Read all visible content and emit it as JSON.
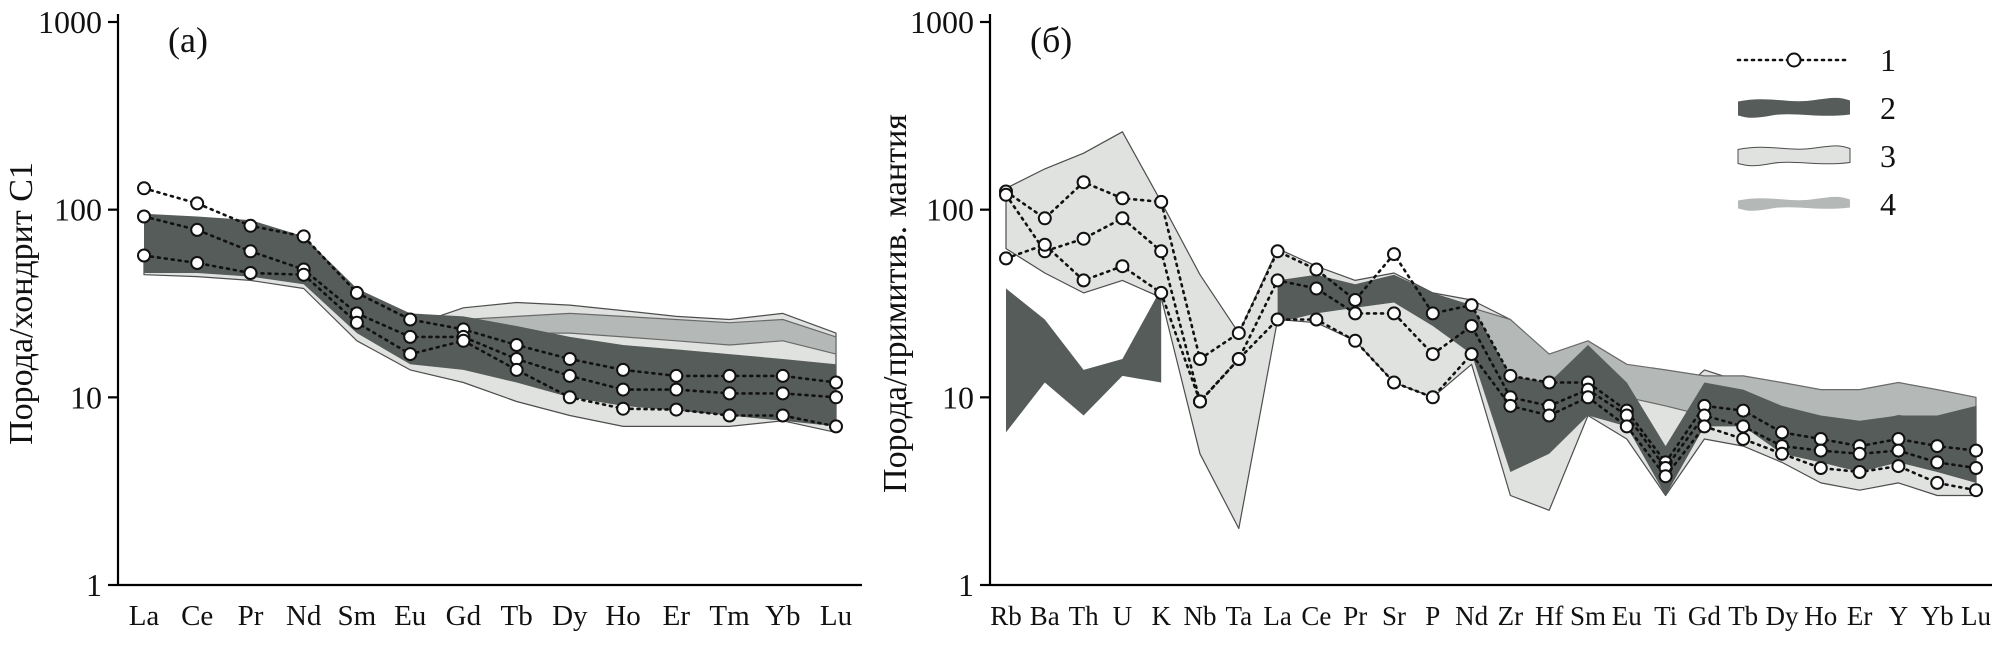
{
  "figure": {
    "panel_a_label": "(а)",
    "panel_b_label": "(б)"
  },
  "legend": {
    "items": [
      {
        "label": "1",
        "type": "line"
      },
      {
        "label": "2",
        "type": "band",
        "color": "#565c5a",
        "height": 15
      },
      {
        "label": "3",
        "type": "band",
        "color": "#e0e2e0",
        "height": 15
      },
      {
        "label": "4",
        "type": "band",
        "color": "#b4b9b7",
        "height": 9
      }
    ]
  },
  "colors": {
    "line": "#111111",
    "marker_fill": "#ffffff",
    "band_dark": "#565c5a",
    "band_light": "#e0e2e0",
    "band_medium": "#b4b9b7"
  },
  "chart_data": [
    {
      "type": "line",
      "panel_label": "(а)",
      "ylabel": "Порода/хондрит С1",
      "yscale": "log",
      "ylim": [
        1,
        1000
      ],
      "yticks": [
        1000,
        100,
        10,
        1
      ],
      "grid": false,
      "categories": [
        "La",
        "Ce",
        "Pr",
        "Nd",
        "Sm",
        "Eu",
        "Gd",
        "Tb",
        "Dy",
        "Ho",
        "Er",
        "Tm",
        "Yb",
        "Lu"
      ],
      "bands": [
        {
          "name": "3",
          "color": "#e0e2e0",
          "stroke": "#4d4d4d",
          "upper": [
            58,
            52,
            50,
            52,
            32,
            24,
            30,
            32,
            31,
            29,
            27,
            26,
            28,
            22
          ],
          "lower": [
            45,
            44,
            42,
            38,
            20,
            14,
            12,
            9.5,
            8,
            7,
            7,
            7,
            7.5,
            6.5
          ]
        },
        {
          "name": "4",
          "color": "#b4b9b7",
          "stroke": "#6a6a6a",
          "upper": [
            null,
            null,
            null,
            null,
            null,
            null,
            26,
            27,
            28,
            27,
            26,
            25,
            26,
            21
          ],
          "lower": [
            null,
            null,
            null,
            null,
            null,
            null,
            21,
            22,
            22,
            21,
            20,
            19,
            20,
            17
          ]
        },
        {
          "name": "2",
          "color": "#565c5a",
          "stroke": "none",
          "upper": [
            95,
            92,
            88,
            72,
            38,
            28,
            27,
            24,
            21,
            19,
            18,
            17,
            16,
            15
          ],
          "lower": [
            46,
            46,
            44,
            40,
            22,
            15,
            14,
            12,
            10,
            9,
            8.5,
            8,
            7.5,
            7
          ]
        }
      ],
      "series": [
        {
          "name": "1-upper",
          "values": [
            130,
            108,
            82,
            72,
            36,
            26,
            23,
            19,
            16,
            14,
            13,
            13,
            13,
            12
          ]
        },
        {
          "name": "1-middle",
          "values": [
            92,
            78,
            60,
            48,
            28,
            21,
            21,
            16,
            13,
            11,
            11,
            10.5,
            10.5,
            10
          ]
        },
        {
          "name": "1-lower",
          "values": [
            57,
            52,
            46,
            45,
            25,
            17,
            20,
            14,
            10,
            8.7,
            8.6,
            8,
            8,
            7
          ]
        }
      ]
    },
    {
      "type": "line",
      "panel_label": "(б)",
      "ylabel": "Порода/примитив. мантия",
      "yscale": "log",
      "ylim": [
        1,
        1000
      ],
      "yticks": [
        1000,
        100,
        10,
        1
      ],
      "grid": false,
      "categories": [
        "Rb",
        "Ba",
        "Th",
        "U",
        "K",
        "Nb",
        "Ta",
        "La",
        "Ce",
        "Pr",
        "Sr",
        "P",
        "Nd",
        "Zr",
        "Hf",
        "Sm",
        "Eu",
        "Ti",
        "Gd",
        "Tb",
        "Dy",
        "Ho",
        "Er",
        "Y",
        "Yb",
        "Lu"
      ],
      "bands": [
        {
          "name": "3",
          "color": "#e0e2e0",
          "stroke": "#4d4d4d",
          "upper": [
            130,
            165,
            200,
            260,
            110,
            45,
            22,
            62,
            50,
            42,
            46,
            36,
            33,
            26,
            15,
            19,
            13,
            9,
            14,
            12,
            10,
            9,
            8.5,
            9,
            10,
            9
          ],
          "lower": [
            62,
            46,
            36,
            42,
            34,
            5,
            2,
            26,
            25,
            20,
            12,
            10,
            15,
            3,
            2.5,
            8,
            6,
            3,
            6,
            5.5,
            4.5,
            3.5,
            3.2,
            3.5,
            3,
            3
          ]
        },
        {
          "name": "4",
          "color": "#b4b9b7",
          "stroke": "#6a6a6a",
          "upper": [
            null,
            null,
            null,
            null,
            null,
            null,
            null,
            null,
            null,
            null,
            null,
            null,
            30,
            26,
            17,
            20,
            15,
            14,
            13,
            13,
            12,
            11,
            11,
            12,
            11,
            10
          ],
          "lower": [
            null,
            null,
            null,
            null,
            null,
            null,
            null,
            null,
            null,
            null,
            null,
            null,
            20,
            13,
            10,
            12,
            10,
            9,
            8,
            8,
            8,
            7.5,
            7,
            8,
            7.5,
            7
          ]
        },
        {
          "name": "2",
          "color": "#565c5a",
          "stroke": "none",
          "upper": [
            38,
            26,
            14,
            16,
            38,
            null,
            null,
            42,
            45,
            40,
            45,
            36,
            31,
            13,
            12,
            19,
            12,
            5.5,
            12,
            11,
            9,
            8,
            7.5,
            8,
            8,
            9
          ],
          "lower": [
            6.5,
            12,
            8,
            13,
            12,
            null,
            null,
            25,
            28,
            30,
            32,
            24,
            17,
            4,
            5,
            8,
            7,
            3,
            7,
            7,
            5,
            4.5,
            4,
            4.5,
            4,
            3.5
          ]
        }
      ],
      "series": [
        {
          "name": "1-upper",
          "values": [
            125,
            90,
            140,
            115,
            110,
            16,
            22,
            60,
            48,
            33,
            58,
            28,
            31,
            13,
            12,
            12,
            8.5,
            4.5,
            9,
            8.5,
            6.5,
            6,
            5.5,
            6,
            5.5,
            5.2
          ]
        },
        {
          "name": "1-middle",
          "values": [
            120,
            60,
            70,
            90,
            60,
            9.5,
            16,
            42,
            38,
            28,
            28,
            17,
            24,
            10,
            9,
            11,
            8,
            4.2,
            8,
            7,
            5.5,
            5.2,
            5,
            5.2,
            4.5,
            4.2
          ]
        },
        {
          "name": "1-lower",
          "values": [
            55,
            65,
            42,
            50,
            36,
            9.5,
            16,
            26,
            26,
            20,
            12,
            10,
            17,
            9,
            8,
            10,
            7,
            3.8,
            7,
            6,
            5,
            4.2,
            4,
            4.3,
            3.5,
            3.2
          ]
        }
      ]
    }
  ]
}
